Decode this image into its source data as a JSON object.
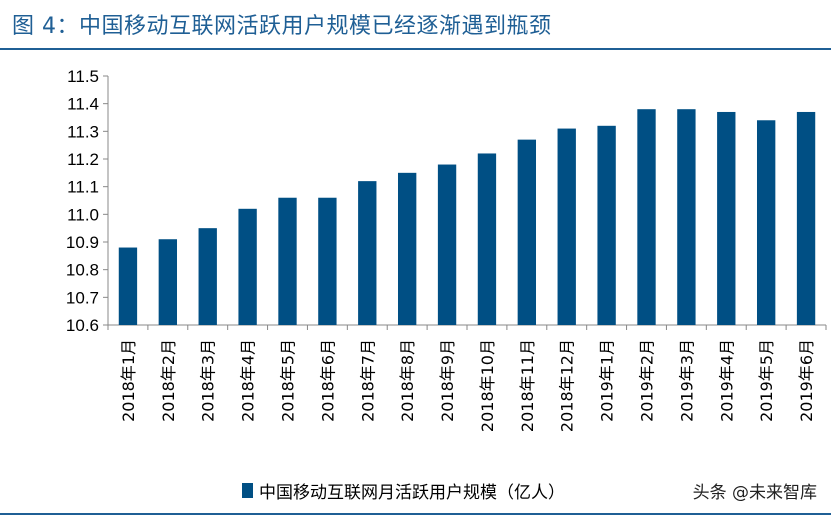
{
  "figure": {
    "title": "图 4：中国移动互联网活跃用户规模已经逐渐遇到瓶颈",
    "watermark": "头条 @未来智库"
  },
  "colors": {
    "bar": "#004f84",
    "title": "#1f5f95"
  },
  "chart_data": {
    "type": "bar",
    "categories": [
      "2018年1月",
      "2018年2月",
      "2018年3月",
      "2018年4月",
      "2018年5月",
      "2018年6月",
      "2018年7月",
      "2018年8月",
      "2018年9月",
      "2018年10月",
      "2018年11月",
      "2018年12月",
      "2019年1月",
      "2019年2月",
      "2019年3月",
      "2019年4月",
      "2019年5月",
      "2019年6月"
    ],
    "series": [
      {
        "name": "中国移动互联网月活跃用户规模（亿人）",
        "values": [
          10.88,
          10.91,
          10.95,
          11.02,
          11.06,
          11.06,
          11.12,
          11.15,
          11.18,
          11.22,
          11.27,
          11.31,
          11.32,
          11.38,
          11.38,
          11.37,
          11.34,
          11.37
        ]
      }
    ],
    "ylim": [
      10.6,
      11.5
    ],
    "yticks": [
      "10.6",
      "10.7",
      "10.8",
      "10.9",
      "11.0",
      "11.1",
      "11.2",
      "11.3",
      "11.4",
      "11.5"
    ],
    "grid": false,
    "legend": "bottom"
  }
}
